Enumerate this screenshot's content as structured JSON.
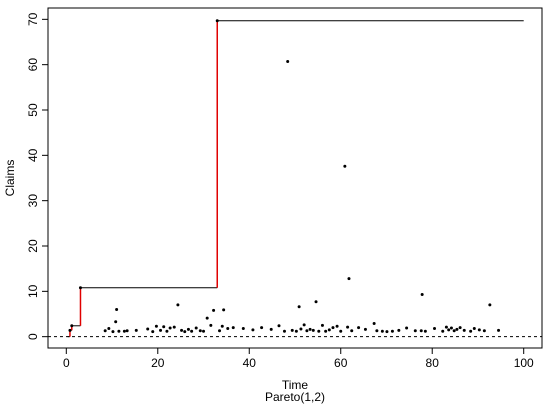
{
  "chart_data": {
    "type": "scatter",
    "title": "",
    "xlabel": "Time",
    "xsublabel": "Pareto(1,2)",
    "ylabel": "Claims",
    "xlim": [
      -4,
      104
    ],
    "ylim": [
      -2.5,
      72.5
    ],
    "xticks": [
      0,
      20,
      40,
      60,
      80,
      100
    ],
    "yticks": [
      0,
      10,
      20,
      30,
      40,
      50,
      60,
      70
    ],
    "grid": false,
    "legend": "none",
    "colors": {
      "points": "#000000",
      "record_step": "#000000",
      "record_rise": "#e00000",
      "baseline": "#000000"
    },
    "baseline_y": 0,
    "record_path": [
      {
        "x": 0.3,
        "y": 0
      },
      {
        "x": 0.8,
        "y": 1.4
      },
      {
        "x": 1.2,
        "y": 2.4
      },
      {
        "x": 3.1,
        "y": 10.8
      },
      {
        "x": 33.0,
        "y": 69.7
      },
      {
        "x": 100,
        "y": 69.7
      }
    ],
    "points": [
      {
        "x": 0.8,
        "y": 1.4
      },
      {
        "x": 1.2,
        "y": 2.4
      },
      {
        "x": 3.1,
        "y": 10.8
      },
      {
        "x": 8.5,
        "y": 1.3
      },
      {
        "x": 9.3,
        "y": 1.8
      },
      {
        "x": 10.2,
        "y": 1.1
      },
      {
        "x": 10.8,
        "y": 3.3
      },
      {
        "x": 11.0,
        "y": 6.0
      },
      {
        "x": 11.5,
        "y": 1.2
      },
      {
        "x": 12.7,
        "y": 1.2
      },
      {
        "x": 13.3,
        "y": 1.3
      },
      {
        "x": 15.3,
        "y": 1.4
      },
      {
        "x": 17.8,
        "y": 1.7
      },
      {
        "x": 18.9,
        "y": 1.1
      },
      {
        "x": 19.7,
        "y": 2.3
      },
      {
        "x": 20.6,
        "y": 1.4
      },
      {
        "x": 21.3,
        "y": 2.2
      },
      {
        "x": 22.0,
        "y": 1.2
      },
      {
        "x": 22.7,
        "y": 1.9
      },
      {
        "x": 23.6,
        "y": 2.1
      },
      {
        "x": 24.4,
        "y": 7.0
      },
      {
        "x": 25.2,
        "y": 1.4
      },
      {
        "x": 25.9,
        "y": 1.1
      },
      {
        "x": 26.7,
        "y": 1.6
      },
      {
        "x": 27.4,
        "y": 1.2
      },
      {
        "x": 28.4,
        "y": 1.9
      },
      {
        "x": 29.3,
        "y": 1.3
      },
      {
        "x": 30.0,
        "y": 1.2
      },
      {
        "x": 30.8,
        "y": 4.1
      },
      {
        "x": 31.6,
        "y": 2.5
      },
      {
        "x": 32.2,
        "y": 5.8
      },
      {
        "x": 33.0,
        "y": 69.7
      },
      {
        "x": 33.5,
        "y": 1.3
      },
      {
        "x": 34.1,
        "y": 2.3
      },
      {
        "x": 34.4,
        "y": 5.9
      },
      {
        "x": 35.3,
        "y": 1.8
      },
      {
        "x": 36.5,
        "y": 2.0
      },
      {
        "x": 38.7,
        "y": 1.8
      },
      {
        "x": 40.8,
        "y": 1.5
      },
      {
        "x": 42.7,
        "y": 2.0
      },
      {
        "x": 44.8,
        "y": 1.6
      },
      {
        "x": 46.5,
        "y": 2.4
      },
      {
        "x": 47.7,
        "y": 1.2
      },
      {
        "x": 48.4,
        "y": 60.7
      },
      {
        "x": 49.4,
        "y": 1.4
      },
      {
        "x": 50.3,
        "y": 1.2
      },
      {
        "x": 50.9,
        "y": 6.6
      },
      {
        "x": 51.3,
        "y": 1.7
      },
      {
        "x": 52.0,
        "y": 2.6
      },
      {
        "x": 52.6,
        "y": 1.3
      },
      {
        "x": 53.3,
        "y": 1.6
      },
      {
        "x": 54.0,
        "y": 1.4
      },
      {
        "x": 54.6,
        "y": 7.7
      },
      {
        "x": 55.2,
        "y": 1.2
      },
      {
        "x": 56.0,
        "y": 2.5
      },
      {
        "x": 56.7,
        "y": 1.2
      },
      {
        "x": 57.5,
        "y": 1.5
      },
      {
        "x": 58.3,
        "y": 2.0
      },
      {
        "x": 59.2,
        "y": 2.3
      },
      {
        "x": 60.0,
        "y": 1.2
      },
      {
        "x": 60.9,
        "y": 37.6
      },
      {
        "x": 61.5,
        "y": 2.1
      },
      {
        "x": 61.8,
        "y": 12.8
      },
      {
        "x": 62.4,
        "y": 1.3
      },
      {
        "x": 63.9,
        "y": 2.0
      },
      {
        "x": 65.4,
        "y": 1.6
      },
      {
        "x": 67.3,
        "y": 2.9
      },
      {
        "x": 67.9,
        "y": 1.3
      },
      {
        "x": 69.1,
        "y": 1.2
      },
      {
        "x": 70.1,
        "y": 1.1
      },
      {
        "x": 71.3,
        "y": 1.2
      },
      {
        "x": 72.7,
        "y": 1.4
      },
      {
        "x": 74.4,
        "y": 1.9
      },
      {
        "x": 76.3,
        "y": 1.3
      },
      {
        "x": 77.6,
        "y": 1.3
      },
      {
        "x": 77.8,
        "y": 9.3
      },
      {
        "x": 78.5,
        "y": 1.2
      },
      {
        "x": 80.5,
        "y": 1.8
      },
      {
        "x": 82.3,
        "y": 1.2
      },
      {
        "x": 83.1,
        "y": 2.1
      },
      {
        "x": 83.6,
        "y": 1.5
      },
      {
        "x": 84.2,
        "y": 1.9
      },
      {
        "x": 84.8,
        "y": 1.3
      },
      {
        "x": 85.4,
        "y": 1.6
      },
      {
        "x": 86.1,
        "y": 2.0
      },
      {
        "x": 87.0,
        "y": 1.4
      },
      {
        "x": 88.4,
        "y": 1.2
      },
      {
        "x": 89.2,
        "y": 1.8
      },
      {
        "x": 90.3,
        "y": 1.5
      },
      {
        "x": 91.4,
        "y": 1.3
      },
      {
        "x": 92.6,
        "y": 7.0
      },
      {
        "x": 94.5,
        "y": 1.4
      }
    ]
  }
}
